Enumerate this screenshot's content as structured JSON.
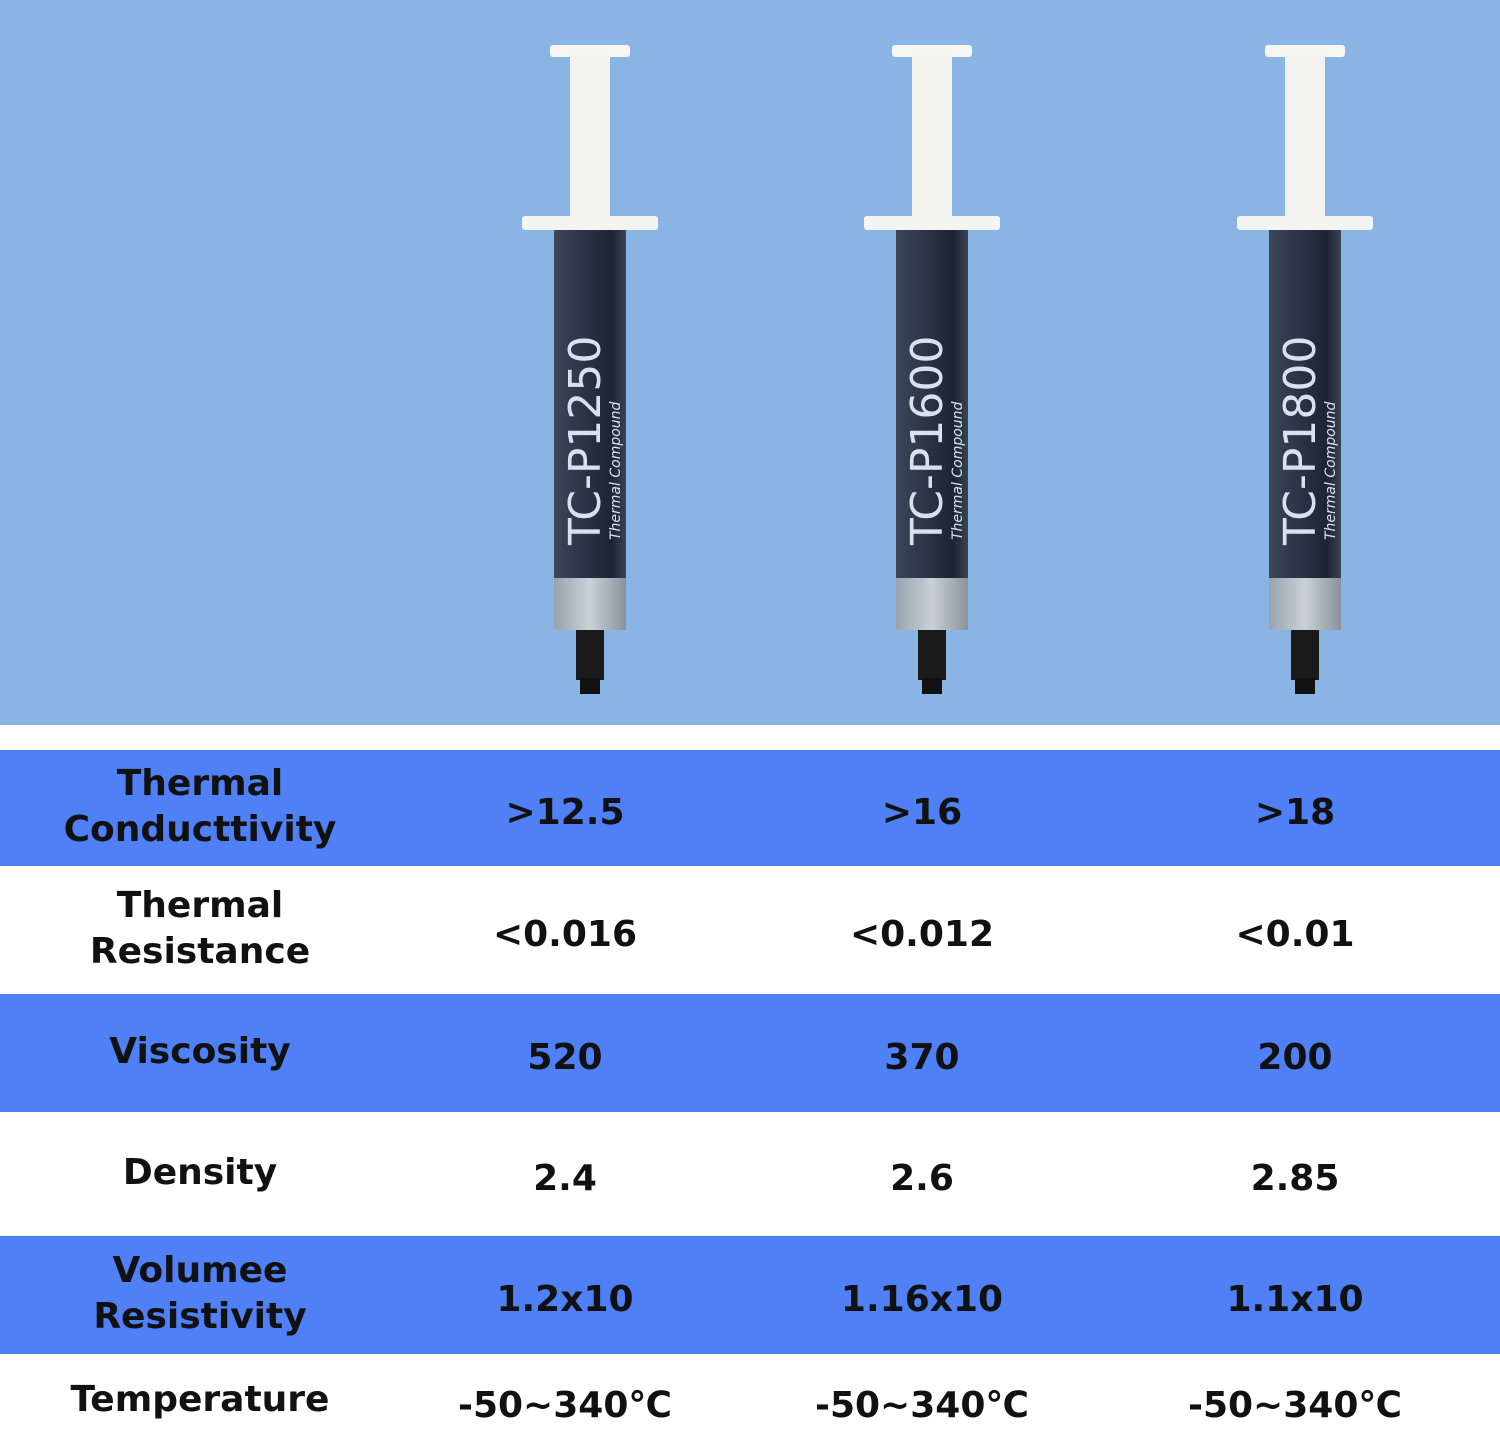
{
  "products": [
    {
      "model": "TC-P1250",
      "subtitle": "Thermal Compound"
    },
    {
      "model": "TC-P1600",
      "subtitle": "Thermal Compound"
    },
    {
      "model": "TC-P1800",
      "subtitle": "Thermal Compound"
    }
  ],
  "table": {
    "rows": [
      {
        "label": [
          "Thermal",
          "Conducttivity"
        ],
        "values": [
          ">12.5",
          ">16",
          ">18"
        ]
      },
      {
        "label": [
          "Thermal",
          "Resistance"
        ],
        "values": [
          "<0.016",
          "<0.012",
          "<0.01"
        ]
      },
      {
        "label": [
          "Viscosity"
        ],
        "values": [
          "520",
          "370",
          "200"
        ]
      },
      {
        "label": [
          "Density"
        ],
        "values": [
          "2.4",
          "2.6",
          "2.85"
        ]
      },
      {
        "label": [
          "Volumee",
          "Resistivity"
        ],
        "values": [
          "1.2x10",
          "1.16x10",
          "1.1x10"
        ]
      },
      {
        "label": [
          "Temperature"
        ],
        "values": [
          "-50~340℃",
          "-50~340℃",
          "-50~340℃"
        ]
      }
    ]
  }
}
